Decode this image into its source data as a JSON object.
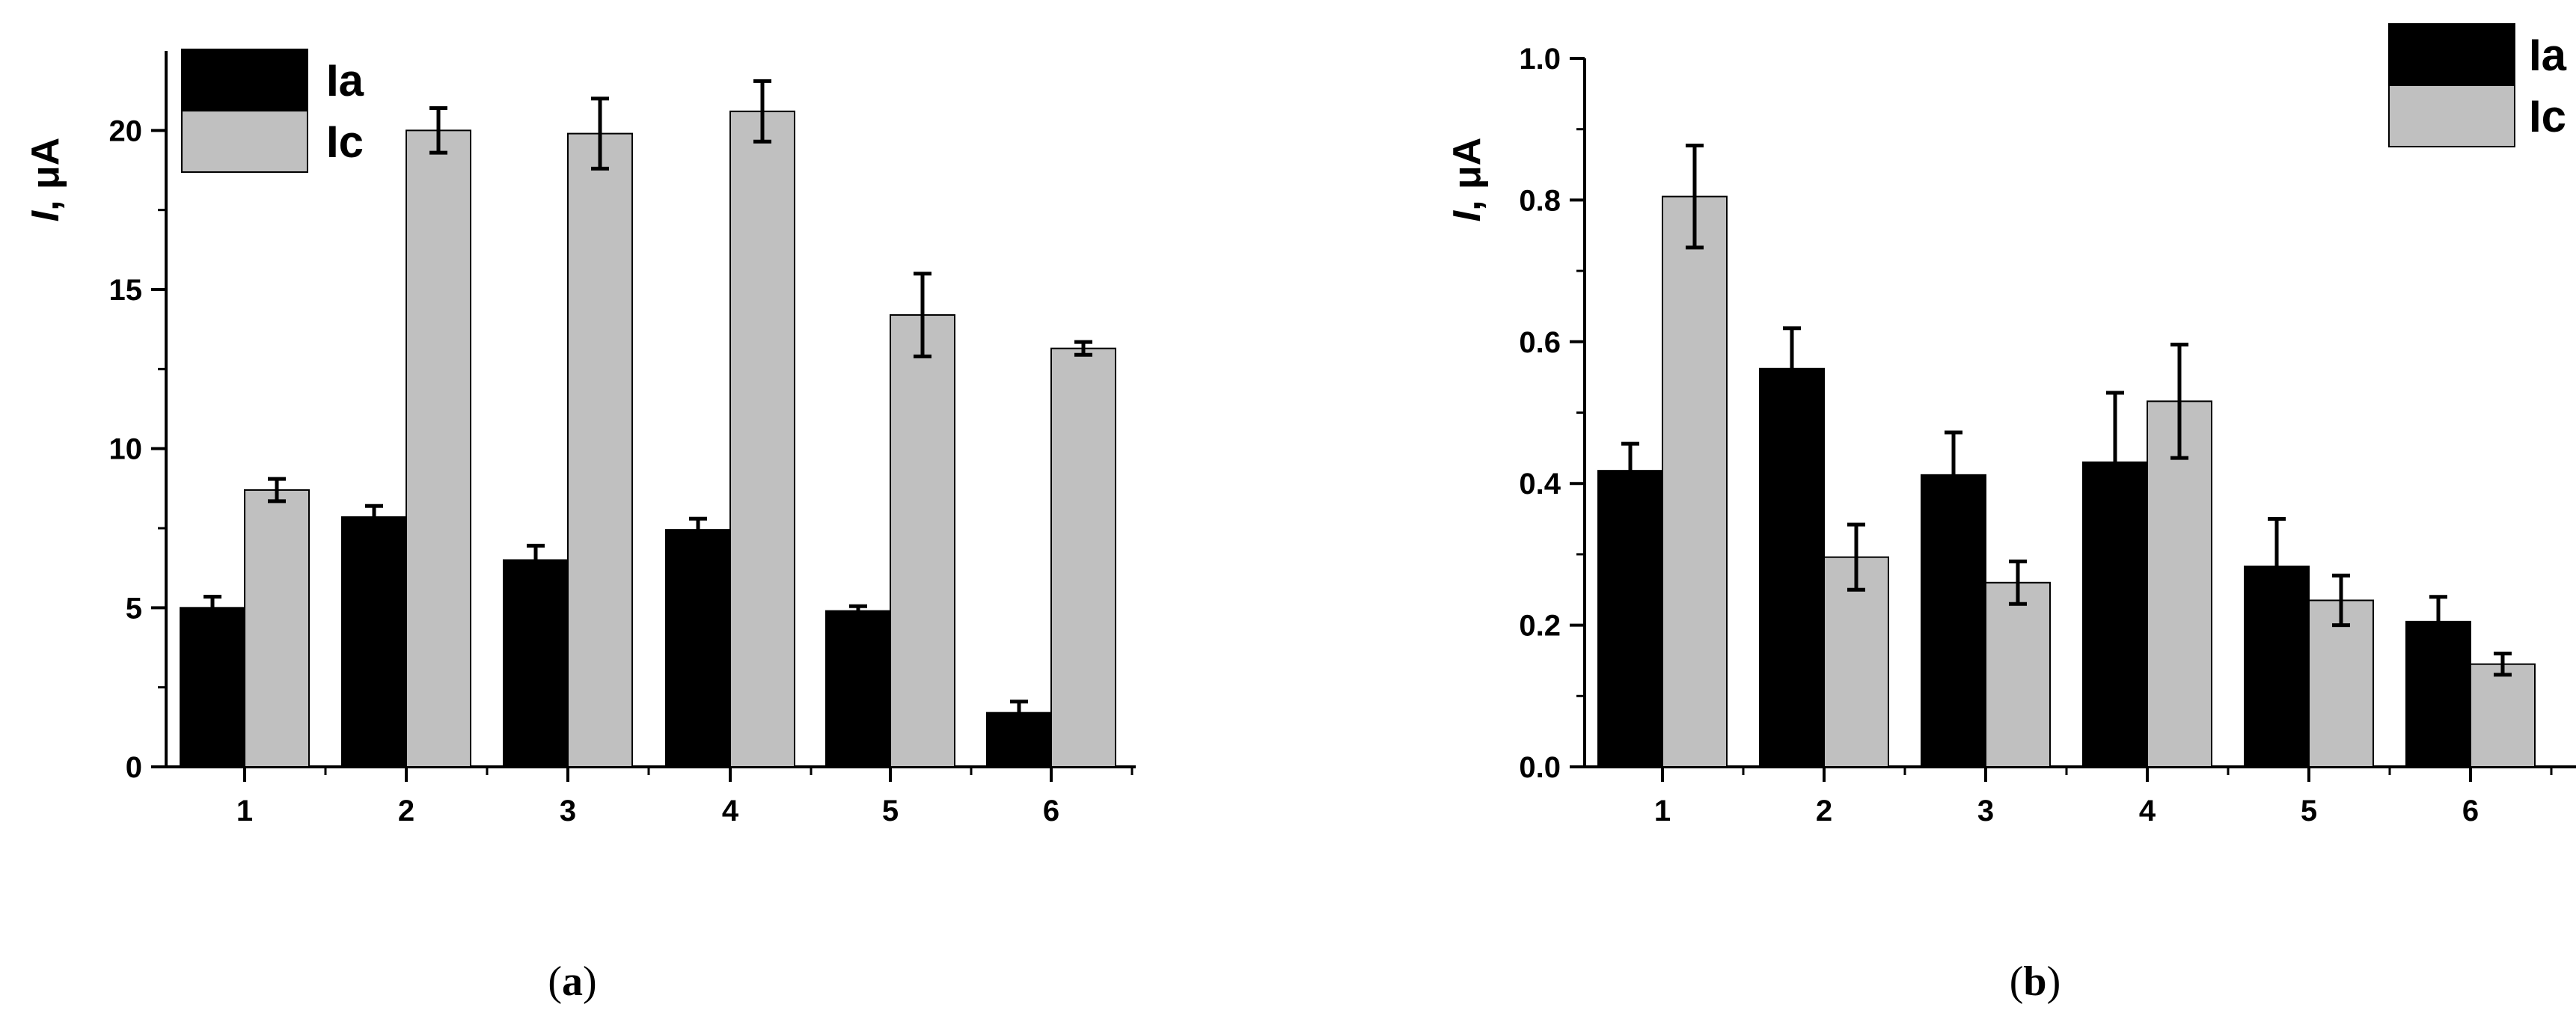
{
  "chart_data": [
    {
      "type": "bar",
      "caption_letter": "a",
      "ylabel_symbol": "I",
      "ylabel_unit": ", μA",
      "ylim": [
        0,
        22.5
      ],
      "yticks": [
        0,
        5,
        10,
        15,
        20
      ],
      "ytick_labels": [
        "0",
        "5",
        "10",
        "15",
        "20"
      ],
      "grid": false,
      "legend": "top-left",
      "categories": [
        "1",
        "2",
        "3",
        "4",
        "5",
        "6"
      ],
      "series": [
        {
          "name": "Ia",
          "color": "#000000",
          "values": [
            5.0,
            7.85,
            6.5,
            7.45,
            4.9,
            1.7
          ],
          "errors": [
            0.35,
            0.35,
            0.45,
            0.35,
            0.15,
            0.35
          ]
        },
        {
          "name": "Ic",
          "color": "#c0c0c0",
          "values": [
            8.7,
            20.0,
            19.9,
            20.6,
            14.2,
            13.15
          ],
          "errors": [
            0.35,
            0.7,
            1.1,
            0.95,
            1.3,
            0.2
          ]
        }
      ]
    },
    {
      "type": "bar",
      "caption_letter": "b",
      "ylabel_symbol": "I",
      "ylabel_unit": ", μA",
      "ylim": [
        0,
        1.0
      ],
      "yticks": [
        0.0,
        0.2,
        0.4,
        0.6,
        0.8,
        1.0
      ],
      "ytick_labels": [
        "0.0",
        "0.2",
        "0.4",
        "0.6",
        "0.8",
        "1.0"
      ],
      "grid": false,
      "legend": "top-right",
      "categories": [
        "1",
        "2",
        "3",
        "4",
        "5",
        "6"
      ],
      "series": [
        {
          "name": "Ia",
          "color": "#000000",
          "values": [
            0.418,
            0.562,
            0.412,
            0.43,
            0.283,
            0.205
          ],
          "errors": [
            0.038,
            0.057,
            0.06,
            0.098,
            0.067,
            0.035
          ]
        },
        {
          "name": "Ic",
          "color": "#c0c0c0",
          "values": [
            0.805,
            0.296,
            0.26,
            0.516,
            0.235,
            0.145
          ],
          "errors": [
            0.072,
            0.046,
            0.03,
            0.08,
            0.035,
            0.015
          ]
        }
      ]
    }
  ]
}
